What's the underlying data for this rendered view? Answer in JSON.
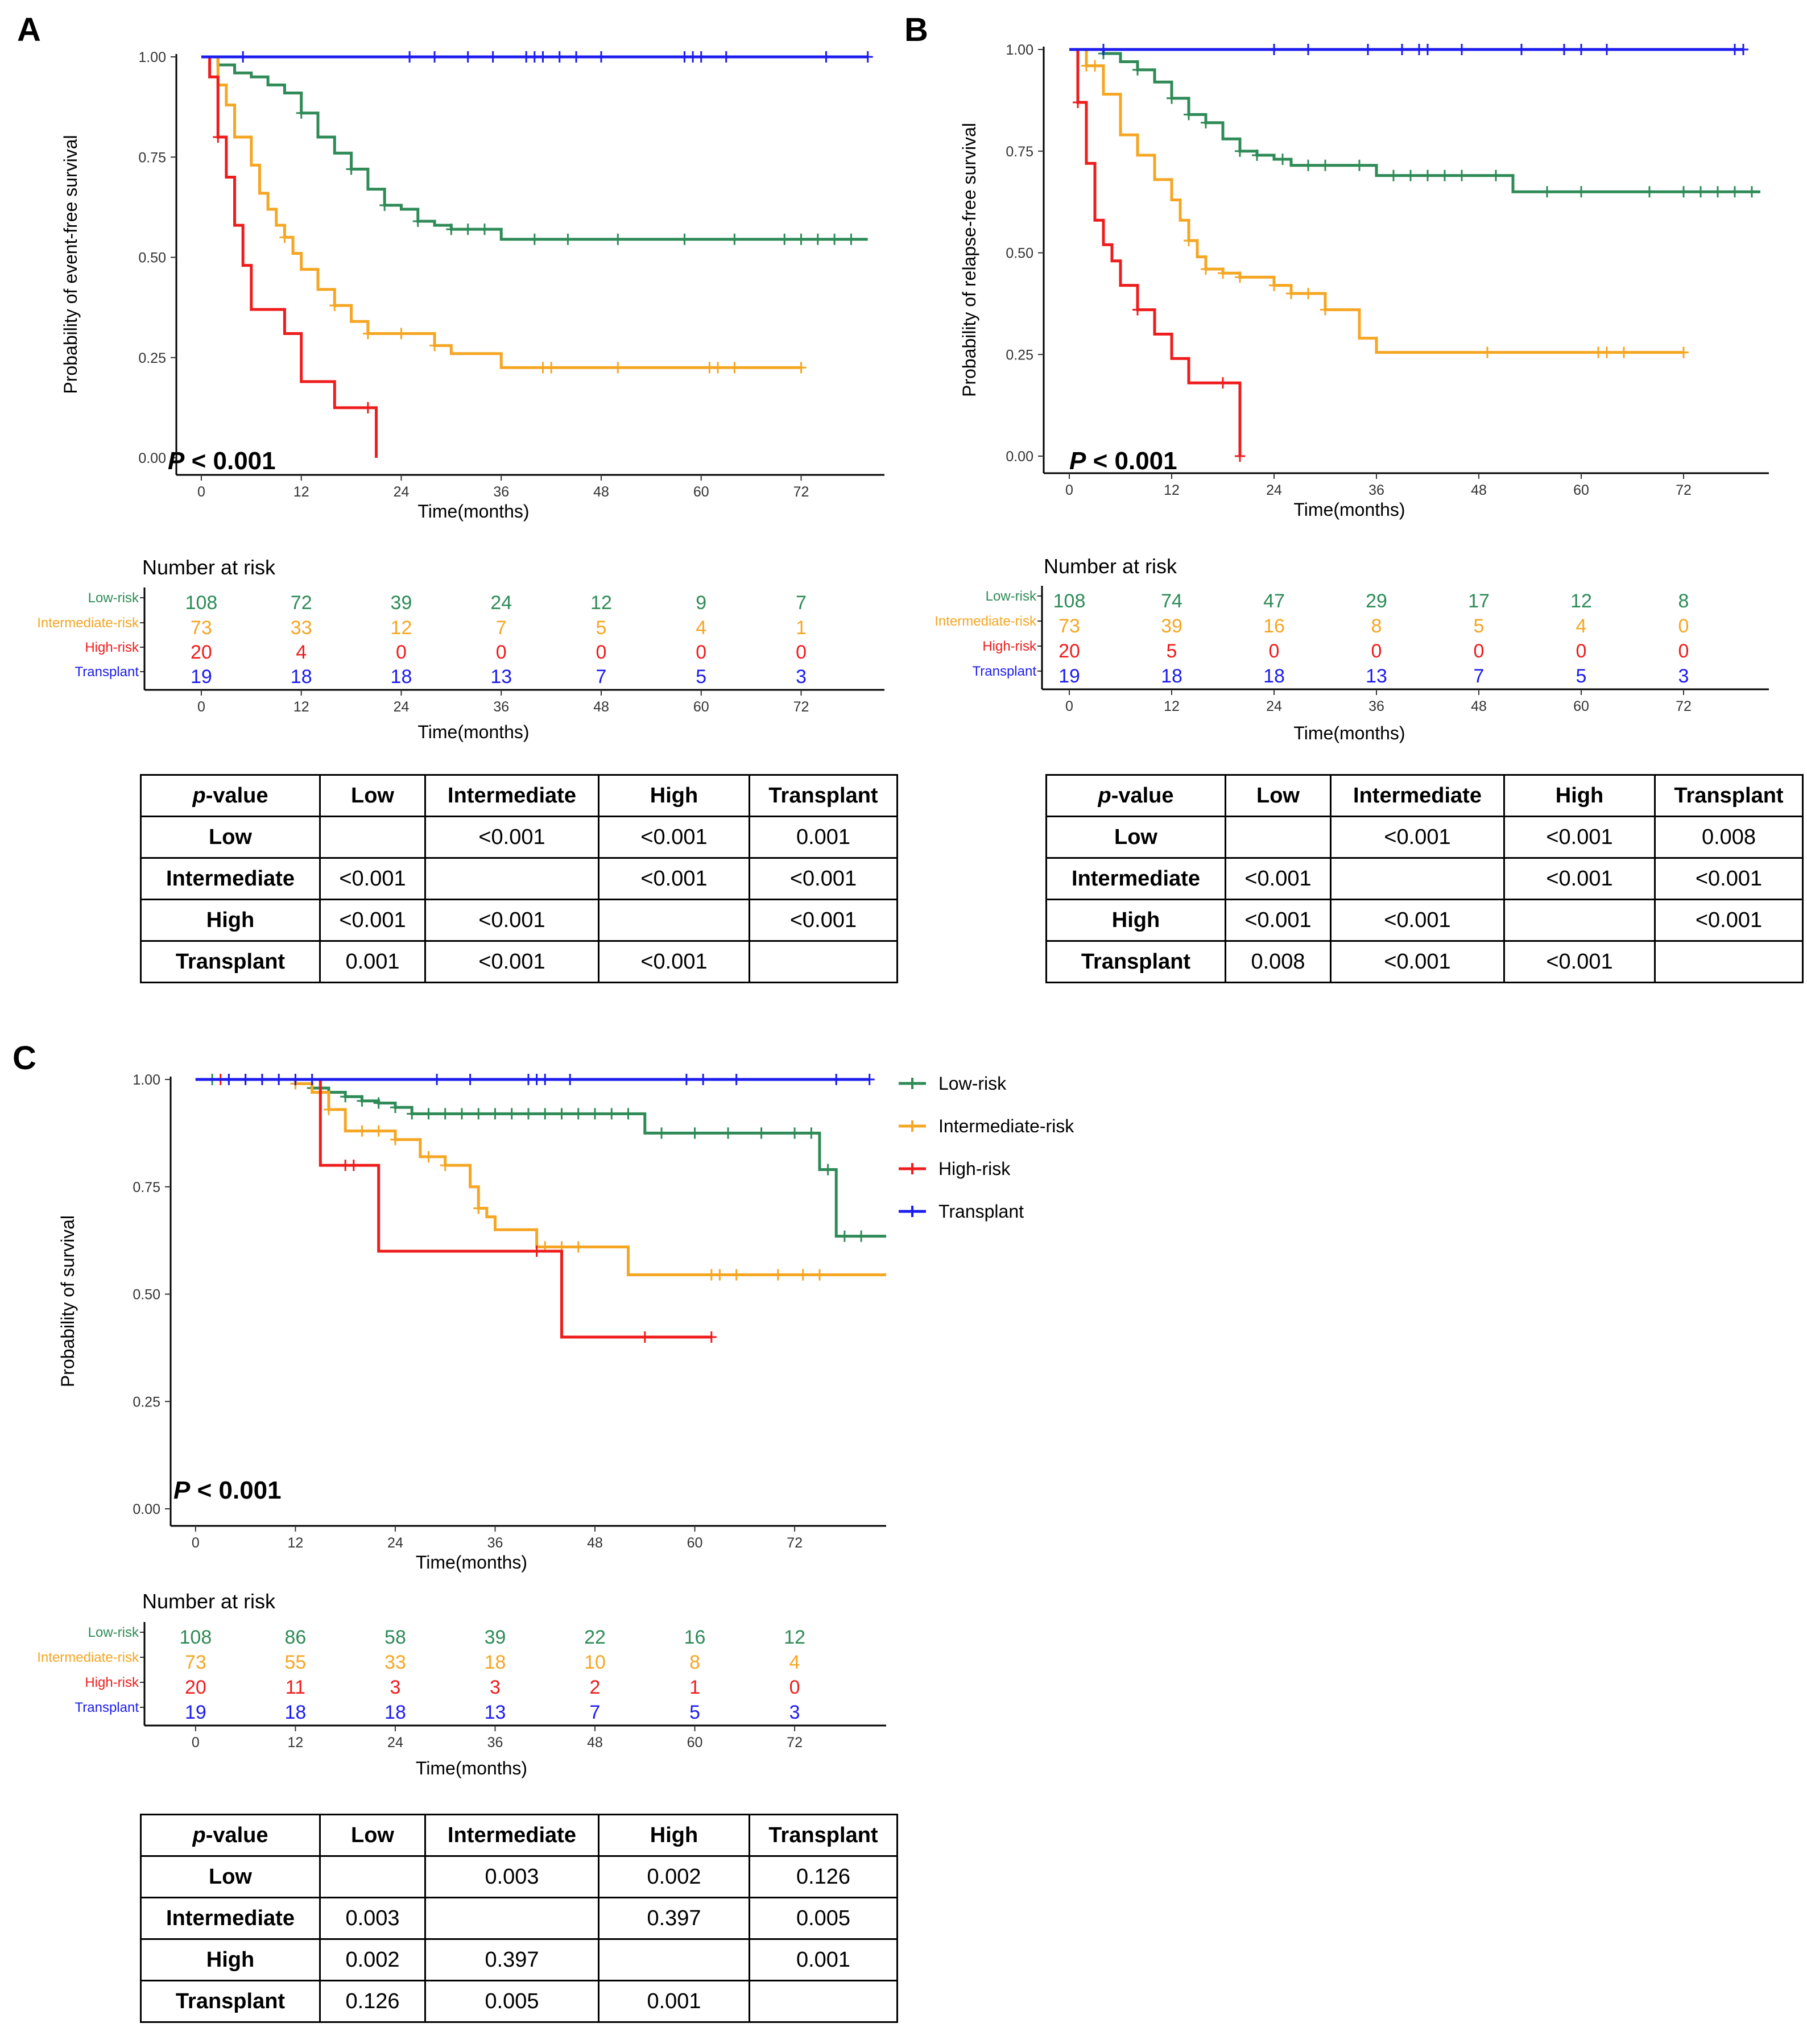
{
  "legend": {
    "items": [
      {
        "name": "Low-risk",
        "color": "#2e8b57"
      },
      {
        "name": "Intermediate-risk",
        "color": "#f5a623"
      },
      {
        "name": "High-risk",
        "color": "#ee1c1c"
      },
      {
        "name": "Transplant",
        "color": "#1c1cee"
      }
    ]
  },
  "risk_title": "Number at risk",
  "risk_labels": [
    "Low-risk",
    "Intermediate-risk",
    "High-risk",
    "Transplant"
  ],
  "chart_data": [
    {
      "panel": "A",
      "type": "line",
      "style": "kaplan-meier step",
      "ylabel": "Probability of event-free survival",
      "xlabel": "Time(months)",
      "xticks": [
        0,
        12,
        24,
        36,
        48,
        60,
        72
      ],
      "yticks": [
        "0.00",
        "0.25",
        "0.50",
        "0.75",
        "1.00"
      ],
      "xlim": [
        -3,
        82
      ],
      "ylim": [
        0,
        1
      ],
      "p_label": "P",
      "p_value": "< 0.001",
      "series": [
        {
          "name": "Low-risk",
          "color": "#2e8b57",
          "x": [
            0,
            2,
            4,
            6,
            8,
            10,
            12,
            14,
            16,
            18,
            20,
            22,
            24,
            26,
            28,
            30,
            36,
            80
          ],
          "y": [
            1.0,
            0.98,
            0.96,
            0.95,
            0.93,
            0.91,
            0.86,
            0.8,
            0.76,
            0.72,
            0.67,
            0.63,
            0.62,
            0.59,
            0.58,
            0.57,
            0.545,
            0.545
          ],
          "censor_x": [
            12,
            18,
            22,
            26,
            30,
            32,
            34,
            40,
            44,
            50,
            58,
            64,
            70,
            72,
            74,
            76,
            78
          ]
        },
        {
          "name": "Intermediate-risk",
          "color": "#f5a623",
          "x": [
            0,
            2,
            3,
            4,
            6,
            7,
            8,
            9,
            10,
            11,
            12,
            14,
            16,
            18,
            20,
            24,
            28,
            30,
            36,
            72
          ],
          "y": [
            1.0,
            0.93,
            0.88,
            0.8,
            0.73,
            0.66,
            0.62,
            0.58,
            0.55,
            0.51,
            0.47,
            0.42,
            0.38,
            0.34,
            0.31,
            0.31,
            0.28,
            0.26,
            0.225,
            0.225
          ],
          "censor_x": [
            10,
            16,
            20,
            24,
            28,
            41,
            42,
            50,
            61,
            62,
            64,
            72
          ]
        },
        {
          "name": "High-risk",
          "color": "#ee1c1c",
          "x": [
            0,
            1,
            2,
            3,
            4,
            5,
            6,
            10,
            12,
            16,
            21
          ],
          "y": [
            1.0,
            0.95,
            0.8,
            0.7,
            0.58,
            0.48,
            0.37,
            0.31,
            0.19,
            0.125,
            0.0
          ],
          "censor_x": [
            2,
            20
          ]
        },
        {
          "name": "Transplant",
          "color": "#1c1cee",
          "x": [
            0,
            80
          ],
          "y": [
            1.0,
            1.0
          ],
          "censor_x": [
            5,
            25,
            28,
            32,
            35,
            39,
            40,
            41,
            43,
            45,
            48,
            58,
            59,
            60,
            63,
            75,
            80
          ]
        }
      ],
      "risk_table": {
        "times": [
          0,
          12,
          24,
          36,
          48,
          60,
          72
        ],
        "rows": [
          {
            "name": "Low-risk",
            "color": "#2e8b57",
            "values": [
              108,
              72,
              39,
              24,
              12,
              9,
              7
            ]
          },
          {
            "name": "Intermediate-risk",
            "color": "#f5a623",
            "values": [
              73,
              33,
              12,
              7,
              5,
              4,
              1
            ]
          },
          {
            "name": "High-risk",
            "color": "#ee1c1c",
            "values": [
              20,
              4,
              0,
              0,
              0,
              0,
              0
            ]
          },
          {
            "name": "Transplant",
            "color": "#1c1cee",
            "values": [
              19,
              18,
              18,
              13,
              7,
              5,
              3
            ]
          }
        ]
      },
      "pvalue_table": {
        "header": [
          "p-value",
          "Low",
          "Intermediate",
          "High",
          "Transplant"
        ],
        "rows": [
          [
            "Low",
            "",
            "<0.001",
            "<0.001",
            "0.001"
          ],
          [
            "Intermediate",
            "<0.001",
            "",
            "<0.001",
            "<0.001"
          ],
          [
            "High",
            "<0.001",
            "<0.001",
            "",
            "<0.001"
          ],
          [
            "Transplant",
            "0.001",
            "<0.001",
            "<0.001",
            ""
          ]
        ]
      }
    },
    {
      "panel": "B",
      "type": "line",
      "style": "kaplan-meier step",
      "ylabel": "Probability of relapse-free survival",
      "xlabel": "Time(months)",
      "xticks": [
        0,
        12,
        24,
        36,
        48,
        60,
        72
      ],
      "yticks": [
        "0.00",
        "0.25",
        "0.50",
        "0.75",
        "1.00"
      ],
      "xlim": [
        -3,
        82
      ],
      "ylim": [
        0,
        1
      ],
      "p_label": "P",
      "p_value": "< 0.001",
      "series": [
        {
          "name": "Low-risk",
          "color": "#2e8b57",
          "x": [
            0,
            4,
            6,
            8,
            10,
            12,
            14,
            16,
            18,
            20,
            22,
            24,
            26,
            36,
            52,
            81
          ],
          "y": [
            1.0,
            0.99,
            0.97,
            0.95,
            0.92,
            0.88,
            0.84,
            0.82,
            0.78,
            0.75,
            0.74,
            0.73,
            0.715,
            0.69,
            0.65,
            0.65
          ],
          "censor_x": [
            4,
            8,
            12,
            14,
            16,
            20,
            22,
            25,
            28,
            30,
            34,
            38,
            40,
            42,
            44,
            46,
            50,
            56,
            60,
            68,
            72,
            74,
            76,
            78,
            80
          ]
        },
        {
          "name": "Intermediate-risk",
          "color": "#f5a623",
          "x": [
            0,
            2,
            4,
            6,
            8,
            10,
            12,
            13,
            14,
            15,
            16,
            18,
            20,
            24,
            26,
            30,
            34,
            36,
            72
          ],
          "y": [
            1.0,
            0.96,
            0.89,
            0.79,
            0.74,
            0.68,
            0.63,
            0.58,
            0.53,
            0.49,
            0.46,
            0.45,
            0.44,
            0.42,
            0.4,
            0.36,
            0.29,
            0.255,
            0.255
          ],
          "censor_x": [
            2,
            3,
            14,
            16,
            18,
            20,
            24,
            26,
            28,
            30,
            49,
            62,
            63,
            65,
            72
          ]
        },
        {
          "name": "High-risk",
          "color": "#ee1c1c",
          "x": [
            0,
            1,
            2,
            3,
            4,
            5,
            6,
            8,
            10,
            12,
            14,
            20
          ],
          "y": [
            1.0,
            0.87,
            0.72,
            0.58,
            0.52,
            0.48,
            0.42,
            0.36,
            0.3,
            0.24,
            0.18,
            0.0
          ],
          "censor_x": [
            1,
            8,
            18,
            20
          ]
        },
        {
          "name": "Transplant",
          "color": "#1c1cee",
          "x": [
            0,
            79
          ],
          "y": [
            1.0,
            1.0
          ],
          "censor_x": [
            4,
            24,
            28,
            35,
            39,
            41,
            42,
            46,
            53,
            58,
            60,
            63,
            78,
            79
          ]
        }
      ],
      "risk_table": {
        "times": [
          0,
          12,
          24,
          36,
          48,
          60,
          72
        ],
        "rows": [
          {
            "name": "Low-risk",
            "color": "#2e8b57",
            "values": [
              108,
              74,
              47,
              29,
              17,
              12,
              8
            ]
          },
          {
            "name": "Intermediate-risk",
            "color": "#f5a623",
            "values": [
              73,
              39,
              16,
              8,
              5,
              4,
              0
            ]
          },
          {
            "name": "High-risk",
            "color": "#ee1c1c",
            "values": [
              20,
              5,
              0,
              0,
              0,
              0,
              0
            ]
          },
          {
            "name": "Transplant",
            "color": "#1c1cee",
            "values": [
              19,
              18,
              18,
              13,
              7,
              5,
              3
            ]
          }
        ]
      },
      "pvalue_table": {
        "header": [
          "p-value",
          "Low",
          "Intermediate",
          "High",
          "Transplant"
        ],
        "rows": [
          [
            "Low",
            "",
            "<0.001",
            "<0.001",
            "0.008"
          ],
          [
            "Intermediate",
            "<0.001",
            "",
            "<0.001",
            "<0.001"
          ],
          [
            "High",
            "<0.001",
            "<0.001",
            "",
            "<0.001"
          ],
          [
            "Transplant",
            "0.008",
            "<0.001",
            "<0.001",
            ""
          ]
        ]
      }
    },
    {
      "panel": "C",
      "type": "line",
      "style": "kaplan-meier step",
      "ylabel": "Probability of survival",
      "xlabel": "Time(months)",
      "xticks": [
        0,
        12,
        24,
        36,
        48,
        60,
        72
      ],
      "yticks": [
        "0.00",
        "0.25",
        "0.50",
        "0.75",
        "1.00"
      ],
      "xlim": [
        -3,
        83
      ],
      "ylim": [
        0,
        1
      ],
      "p_label": "P",
      "p_value": "< 0.001",
      "series": [
        {
          "name": "Low-risk",
          "color": "#2e8b57",
          "x": [
            0,
            8,
            12,
            14,
            16,
            18,
            20,
            22,
            24,
            26,
            36,
            54,
            75,
            77,
            83
          ],
          "y": [
            1.0,
            1.0,
            0.99,
            0.98,
            0.97,
            0.96,
            0.95,
            0.945,
            0.935,
            0.92,
            0.92,
            0.875,
            0.79,
            0.635,
            0.635
          ],
          "censor_x": [
            2,
            4,
            6,
            8,
            10,
            12,
            14,
            18,
            20,
            22,
            24,
            26,
            28,
            30,
            32,
            34,
            36,
            38,
            40,
            42,
            44,
            46,
            48,
            50,
            52,
            56,
            60,
            64,
            68,
            72,
            74,
            76,
            78,
            80
          ]
        },
        {
          "name": "Intermediate-risk",
          "color": "#f5a623",
          "x": [
            0,
            12,
            14,
            16,
            18,
            20,
            24,
            27,
            30,
            33,
            34,
            35,
            36,
            38,
            41,
            44,
            52,
            83
          ],
          "y": [
            1.0,
            0.99,
            0.97,
            0.93,
            0.88,
            0.88,
            0.86,
            0.82,
            0.8,
            0.75,
            0.7,
            0.68,
            0.65,
            0.65,
            0.61,
            0.61,
            0.545,
            0.545
          ],
          "censor_x": [
            4,
            6,
            8,
            10,
            12,
            16,
            20,
            22,
            24,
            28,
            30,
            34,
            42,
            44,
            46,
            62,
            63,
            65,
            70,
            73,
            75
          ]
        },
        {
          "name": "High-risk",
          "color": "#ee1c1c",
          "x": [
            0,
            15,
            22,
            44,
            62
          ],
          "y": [
            1.0,
            0.8,
            0.6,
            0.4,
            0.4
          ],
          "censor_x": [
            3,
            18,
            19,
            41,
            54,
            62
          ]
        },
        {
          "name": "Transplant",
          "color": "#1c1cee",
          "x": [
            0,
            81
          ],
          "y": [
            1.0,
            1.0
          ],
          "censor_x": [
            4,
            6,
            8,
            10,
            12,
            14,
            29,
            33,
            40,
            41,
            42,
            45,
            59,
            61,
            65,
            77,
            81
          ]
        }
      ],
      "risk_table": {
        "times": [
          0,
          12,
          24,
          36,
          48,
          60,
          72
        ],
        "rows": [
          {
            "name": "Low-risk",
            "color": "#2e8b57",
            "values": [
              108,
              86,
              58,
              39,
              22,
              16,
              12
            ]
          },
          {
            "name": "Intermediate-risk",
            "color": "#f5a623",
            "values": [
              73,
              55,
              33,
              18,
              10,
              8,
              4
            ]
          },
          {
            "name": "High-risk",
            "color": "#ee1c1c",
            "values": [
              20,
              11,
              3,
              3,
              2,
              1,
              0
            ]
          },
          {
            "name": "Transplant",
            "color": "#1c1cee",
            "values": [
              19,
              18,
              18,
              13,
              7,
              5,
              3
            ]
          }
        ]
      },
      "pvalue_table": {
        "header": [
          "p-value",
          "Low",
          "Intermediate",
          "High",
          "Transplant"
        ],
        "rows": [
          [
            "Low",
            "",
            "0.003",
            "0.002",
            "0.126"
          ],
          [
            "Intermediate",
            "0.003",
            "",
            "0.397",
            "0.005"
          ],
          [
            "High",
            "0.002",
            "0.397",
            "",
            "0.001"
          ],
          [
            "Transplant",
            "0.126",
            "0.005",
            "0.001",
            ""
          ]
        ]
      }
    }
  ]
}
